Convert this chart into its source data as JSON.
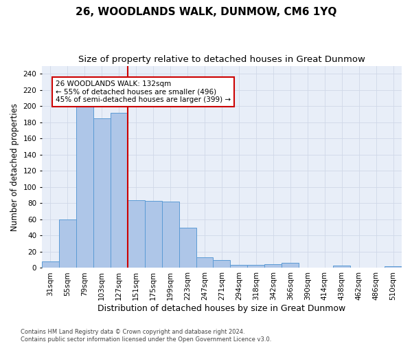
{
  "title": "26, WOODLANDS WALK, DUNMOW, CM6 1YQ",
  "subtitle": "Size of property relative to detached houses in Great Dunmow",
  "xlabel": "Distribution of detached houses by size in Great Dunmow",
  "ylabel": "Number of detached properties",
  "bar_labels": [
    "31sqm",
    "55sqm",
    "79sqm",
    "103sqm",
    "127sqm",
    "151sqm",
    "175sqm",
    "199sqm",
    "223sqm",
    "247sqm",
    "271sqm",
    "294sqm",
    "318sqm",
    "342sqm",
    "366sqm",
    "390sqm",
    "414sqm",
    "438sqm",
    "462sqm",
    "486sqm",
    "510sqm"
  ],
  "bar_values": [
    8,
    60,
    202,
    185,
    192,
    84,
    83,
    82,
    50,
    13,
    10,
    4,
    4,
    5,
    6,
    0,
    0,
    3,
    0,
    0,
    2
  ],
  "bar_color": "#aec6e8",
  "bar_edgecolor": "#5b9bd5",
  "property_line_x": 4.5,
  "annotation_text": "26 WOODLANDS WALK: 132sqm\n← 55% of detached houses are smaller (496)\n45% of semi-detached houses are larger (399) →",
  "annotation_box_color": "#ffffff",
  "annotation_box_edgecolor": "#cc0000",
  "vline_color": "#cc0000",
  "ylim": [
    0,
    250
  ],
  "yticks": [
    0,
    20,
    40,
    60,
    80,
    100,
    120,
    140,
    160,
    180,
    200,
    220,
    240
  ],
  "grid_color": "#d0d8e8",
  "background_color": "#e8eef8",
  "footer_text": "Contains HM Land Registry data © Crown copyright and database right 2024.\nContains public sector information licensed under the Open Government Licence v3.0.",
  "title_fontsize": 11,
  "subtitle_fontsize": 9.5,
  "xlabel_fontsize": 9,
  "ylabel_fontsize": 8.5,
  "tick_fontsize": 7.5,
  "annotation_fontsize": 7.5,
  "footer_fontsize": 6
}
